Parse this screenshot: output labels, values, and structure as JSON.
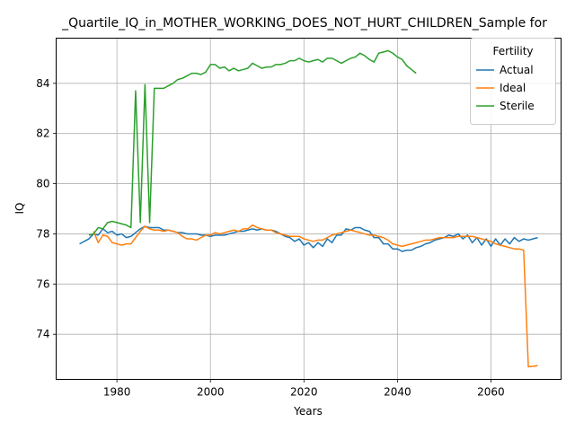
{
  "chart_data": {
    "type": "line",
    "title": "_Quartile_IQ_in_MOTHER_WORKING_DOES_NOT_HURT_CHILDREN_Sample for",
    "xlabel": "Years",
    "ylabel": "IQ",
    "xlim": [
      1967,
      2075
    ],
    "ylim": [
      72.2,
      85.8
    ],
    "xticks": [
      1980,
      2000,
      2020,
      2040,
      2060
    ],
    "yticks": [
      74,
      76,
      78,
      80,
      82,
      84
    ],
    "grid": true,
    "legend": {
      "title": "Fertility",
      "placement": "top-right"
    },
    "series": [
      {
        "name": "Actual",
        "color": "#1f77b4",
        "x": [
          1972,
          1974,
          1975,
          1976,
          1977,
          1978,
          1979,
          1980,
          1981,
          1982,
          1983,
          1984,
          1985,
          1986,
          1987,
          1988,
          1989,
          1990,
          1991,
          1992,
          1993,
          1994,
          1995,
          1996,
          1997,
          1998,
          1999,
          2000,
          2001,
          2002,
          2003,
          2004,
          2005,
          2006,
          2007,
          2008,
          2009,
          2010,
          2011,
          2012,
          2013,
          2014,
          2015,
          2016,
          2017,
          2018,
          2019,
          2020,
          2021,
          2022,
          2023,
          2024,
          2025,
          2026,
          2027,
          2028,
          2029,
          2030,
          2031,
          2032,
          2033,
          2034,
          2035,
          2036,
          2037,
          2038,
          2039,
          2040,
          2041,
          2042,
          2043,
          2044,
          2045,
          2046,
          2047,
          2048,
          2049,
          2050,
          2051,
          2052,
          2053,
          2054,
          2055,
          2056,
          2057,
          2058,
          2059,
          2060,
          2061,
          2062,
          2063,
          2064,
          2065,
          2066,
          2067,
          2068,
          2069,
          2070
        ],
        "y": [
          77.6,
          77.8,
          78.0,
          77.95,
          78.2,
          78.05,
          78.1,
          77.95,
          78.0,
          77.85,
          77.9,
          78.05,
          78.2,
          78.3,
          78.25,
          78.25,
          78.25,
          78.15,
          78.15,
          78.1,
          78.05,
          78.05,
          78.0,
          78.0,
          78.0,
          77.95,
          77.95,
          77.9,
          77.95,
          77.95,
          77.95,
          78.0,
          78.05,
          78.1,
          78.1,
          78.15,
          78.2,
          78.15,
          78.2,
          78.15,
          78.15,
          78.1,
          78.0,
          77.9,
          77.85,
          77.7,
          77.8,
          77.55,
          77.65,
          77.45,
          77.65,
          77.5,
          77.8,
          77.65,
          77.95,
          77.95,
          78.2,
          78.15,
          78.25,
          78.25,
          78.15,
          78.1,
          77.85,
          77.85,
          77.6,
          77.6,
          77.4,
          77.4,
          77.3,
          77.35,
          77.35,
          77.45,
          77.5,
          77.6,
          77.65,
          77.75,
          77.8,
          77.85,
          77.95,
          77.9,
          78.0,
          77.8,
          77.95,
          77.65,
          77.85,
          77.55,
          77.8,
          77.5,
          77.8,
          77.55,
          77.8,
          77.6,
          77.85,
          77.7,
          77.8,
          77.75,
          77.8,
          77.85
        ]
      },
      {
        "name": "Ideal",
        "color": "#ff7f0e",
        "x": [
          1975,
          1976,
          1977,
          1978,
          1979,
          1980,
          1981,
          1982,
          1983,
          1984,
          1985,
          1986,
          1987,
          1988,
          1989,
          1990,
          1991,
          1992,
          1993,
          1994,
          1995,
          1996,
          1997,
          1998,
          1999,
          2000,
          2001,
          2002,
          2003,
          2004,
          2005,
          2006,
          2007,
          2008,
          2009,
          2010,
          2011,
          2012,
          2013,
          2014,
          2015,
          2016,
          2017,
          2018,
          2019,
          2020,
          2021,
          2022,
          2023,
          2024,
          2025,
          2026,
          2027,
          2028,
          2029,
          2030,
          2031,
          2032,
          2033,
          2034,
          2035,
          2036,
          2037,
          2038,
          2039,
          2040,
          2041,
          2042,
          2043,
          2044,
          2045,
          2046,
          2047,
          2048,
          2049,
          2050,
          2051,
          2052,
          2053,
          2054,
          2055,
          2056,
          2057,
          2058,
          2059,
          2060,
          2061,
          2062,
          2063,
          2064,
          2065,
          2066,
          2067,
          2068,
          2069,
          2070
        ],
        "y": [
          78.1,
          77.65,
          77.95,
          77.9,
          77.65,
          77.6,
          77.55,
          77.6,
          77.6,
          77.85,
          78.1,
          78.3,
          78.2,
          78.15,
          78.15,
          78.1,
          78.15,
          78.1,
          78.05,
          77.9,
          77.8,
          77.8,
          77.75,
          77.85,
          77.95,
          77.95,
          78.05,
          78.0,
          78.05,
          78.1,
          78.15,
          78.1,
          78.2,
          78.2,
          78.35,
          78.25,
          78.2,
          78.15,
          78.15,
          78.05,
          78.0,
          77.95,
          77.9,
          77.9,
          77.9,
          77.8,
          77.75,
          77.7,
          77.75,
          77.75,
          77.85,
          77.95,
          78.0,
          78.05,
          78.1,
          78.15,
          78.1,
          78.05,
          78.0,
          77.95,
          77.95,
          77.9,
          77.85,
          77.75,
          77.6,
          77.55,
          77.5,
          77.55,
          77.6,
          77.65,
          77.7,
          77.75,
          77.75,
          77.8,
          77.85,
          77.85,
          77.85,
          77.85,
          77.9,
          77.9,
          77.9,
          77.9,
          77.85,
          77.8,
          77.75,
          77.7,
          77.6,
          77.55,
          77.5,
          77.45,
          77.4,
          77.4,
          77.35,
          72.7,
          72.72,
          72.75
        ]
      },
      {
        "name": "Sterile",
        "color": "#2ca02c",
        "x": [
          1974,
          1975,
          1976,
          1977,
          1978,
          1979,
          1980,
          1981,
          1982,
          1983,
          1984,
          1985,
          1986,
          1987,
          1988,
          1989,
          1990,
          1991,
          1992,
          1993,
          1994,
          1995,
          1996,
          1997,
          1998,
          1999,
          2000,
          2001,
          2002,
          2003,
          2004,
          2005,
          2006,
          2007,
          2008,
          2009,
          2010,
          2011,
          2012,
          2013,
          2014,
          2015,
          2016,
          2017,
          2018,
          2019,
          2020,
          2021,
          2022,
          2023,
          2024,
          2025,
          2026,
          2027,
          2028,
          2029,
          2030,
          2031,
          2032,
          2033,
          2034,
          2035,
          2036,
          2037,
          2038,
          2039,
          2040,
          2041,
          2042,
          2043,
          2044
        ],
        "y": [
          77.95,
          78.0,
          78.25,
          78.2,
          78.45,
          78.5,
          78.45,
          78.4,
          78.35,
          78.25,
          83.7,
          78.45,
          83.95,
          78.45,
          83.8,
          83.8,
          83.8,
          83.9,
          84.0,
          84.15,
          84.2,
          84.3,
          84.4,
          84.4,
          84.35,
          84.45,
          84.75,
          84.75,
          84.6,
          84.65,
          84.5,
          84.6,
          84.5,
          84.55,
          84.6,
          84.8,
          84.7,
          84.6,
          84.65,
          84.65,
          84.75,
          84.75,
          84.8,
          84.9,
          84.9,
          85.0,
          84.9,
          84.85,
          84.9,
          84.95,
          84.85,
          85.0,
          85.0,
          84.9,
          84.8,
          84.9,
          85.0,
          85.05,
          85.2,
          85.1,
          84.95,
          84.85,
          85.2,
          85.25,
          85.3,
          85.2,
          85.05,
          84.95,
          84.7,
          84.55,
          84.4
        ]
      }
    ]
  }
}
